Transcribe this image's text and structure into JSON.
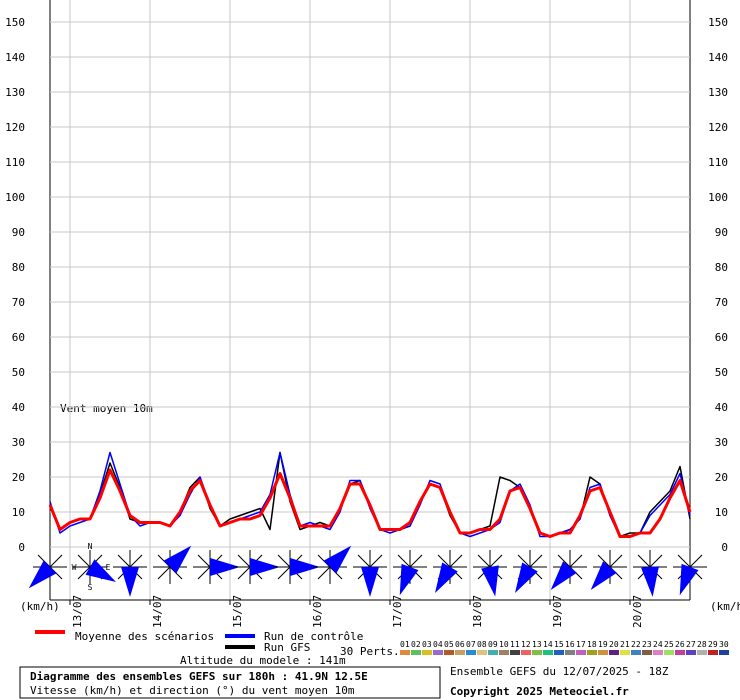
{
  "chart_data": {
    "type": "line",
    "title": "Diagramme des ensembles GEFS sur 180h : 41.9N 12.5E",
    "subtitle": "Vitesse (km/h) et direction (°) du vent moyen 10m",
    "annotation": "Vent moyen 10m",
    "y_label": "(km/h)",
    "altitude": "Altitude du modele : 141m",
    "run_info": "Ensemble GEFS du 12/07/2025 - 18Z",
    "copyright": "Copyright 2025 Meteociel.fr",
    "perturbations_label": "30 Perts.",
    "perturbations": [
      {
        "label": "01",
        "color": "#e08a3c"
      },
      {
        "label": "02",
        "color": "#5cc05c"
      },
      {
        "label": "03",
        "color": "#d8c020"
      },
      {
        "label": "04",
        "color": "#9a6acb"
      },
      {
        "label": "05",
        "color": "#b05a28"
      },
      {
        "label": "06",
        "color": "#c8a060"
      },
      {
        "label": "07",
        "color": "#2a8ad8"
      },
      {
        "label": "08",
        "color": "#e0c080"
      },
      {
        "label": "09",
        "color": "#40b0b0"
      },
      {
        "label": "10",
        "color": "#a08060"
      },
      {
        "label": "11",
        "color": "#404040"
      },
      {
        "label": "12",
        "color": "#f06060"
      },
      {
        "label": "13",
        "color": "#80c040"
      },
      {
        "label": "14",
        "color": "#20c080"
      },
      {
        "label": "15",
        "color": "#2060c0"
      },
      {
        "label": "16",
        "color": "#808080"
      },
      {
        "label": "17",
        "color": "#c060c0"
      },
      {
        "label": "18",
        "color": "#a0a020"
      },
      {
        "label": "19",
        "color": "#d09040"
      },
      {
        "label": "20",
        "color": "#602080"
      },
      {
        "label": "21",
        "color": "#e0e040"
      },
      {
        "label": "22",
        "color": "#4080c0"
      },
      {
        "label": "23",
        "color": "#806040"
      },
      {
        "label": "24",
        "color": "#e080c0"
      },
      {
        "label": "25",
        "color": "#a0e060"
      },
      {
        "label": "26",
        "color": "#c040a0"
      },
      {
        "label": "27",
        "color": "#6040c0"
      },
      {
        "label": "28",
        "color": "#b0b0b0"
      },
      {
        "label": "29",
        "color": "#c02020"
      },
      {
        "label": "30",
        "color": "#2040a0"
      }
    ],
    "categories": [
      null,
      null,
      "13/07",
      null,
      null,
      null,
      null,
      null,
      null,
      null,
      "14/07",
      null,
      null,
      null,
      null,
      null,
      null,
      null,
      "15/07",
      null,
      null,
      null,
      null,
      null,
      null,
      null,
      "16/07",
      null,
      null,
      null,
      null,
      null,
      null,
      null,
      "17/07",
      null,
      null,
      null,
      null,
      null,
      null,
      null,
      "18/07",
      null,
      null,
      null,
      null,
      null,
      null,
      null,
      "19/07",
      null,
      null,
      null,
      null,
      null,
      null,
      null,
      "20/07",
      null,
      null,
      null,
      null,
      null,
      null
    ],
    "series": [
      {
        "name": "Moyenne des scénarios",
        "color": "#ff0000",
        "line_width": 3,
        "values": [
          12,
          5,
          7,
          8,
          8,
          14,
          22,
          16,
          9,
          7,
          7,
          7,
          6,
          10,
          16,
          19,
          12,
          6,
          7,
          8,
          8,
          9,
          14,
          21,
          14,
          6,
          6,
          6,
          6,
          11,
          18,
          18,
          12,
          5,
          5,
          5,
          7,
          13,
          18,
          17,
          10,
          4,
          4,
          5,
          5,
          8,
          16,
          17,
          11,
          4,
          3,
          4,
          4,
          9,
          16,
          17,
          10,
          3,
          3,
          4,
          4,
          8,
          14,
          19,
          10
        ]
      },
      {
        "name": "Run de contrôle",
        "color": "#0000ff",
        "line_width": 1.5,
        "values": [
          13,
          4,
          6,
          7,
          8,
          16,
          27,
          18,
          9,
          6,
          7,
          7,
          6,
          9,
          15,
          20,
          12,
          6,
          7,
          8,
          9,
          10,
          15,
          27,
          15,
          6,
          7,
          6,
          5,
          10,
          19,
          19,
          11,
          5,
          4,
          5,
          6,
          12,
          19,
          18,
          10,
          4,
          3,
          4,
          5,
          7,
          16,
          18,
          12,
          3,
          3,
          4,
          5,
          8,
          17,
          18,
          9,
          3,
          3,
          4,
          9,
          12,
          15,
          21,
          9
        ]
      },
      {
        "name": "Run GFS",
        "color": "#000000",
        "line_width": 1.5,
        "values": [
          12,
          5,
          7,
          8,
          8,
          15,
          24,
          17,
          8,
          7,
          7,
          7,
          6,
          10,
          17,
          20,
          11,
          6,
          8,
          9,
          10,
          11,
          5,
          27,
          13,
          5,
          6,
          7,
          6,
          11,
          18,
          19,
          12,
          5,
          5,
          5,
          6,
          13,
          18,
          17,
          9,
          4,
          4,
          5,
          6,
          20,
          19,
          17,
          11,
          4,
          3,
          4,
          5,
          8,
          20,
          18,
          9,
          3,
          4,
          4,
          10,
          13,
          16,
          23,
          8
        ]
      }
    ],
    "wind_direction_deg": [
      225,
      120,
      180,
      45,
      90,
      90,
      90,
      45,
      180,
      200,
      210,
      170,
      210,
      220,
      220,
      175,
      200
    ],
    "compass_labels": [
      "N",
      "W",
      "E",
      "S"
    ],
    "ylim": [
      0,
      150
    ],
    "yticks": [
      0,
      10,
      20,
      30,
      40,
      50,
      60,
      70,
      80,
      90,
      100,
      110,
      120,
      130,
      140,
      150
    ],
    "grid": true
  }
}
